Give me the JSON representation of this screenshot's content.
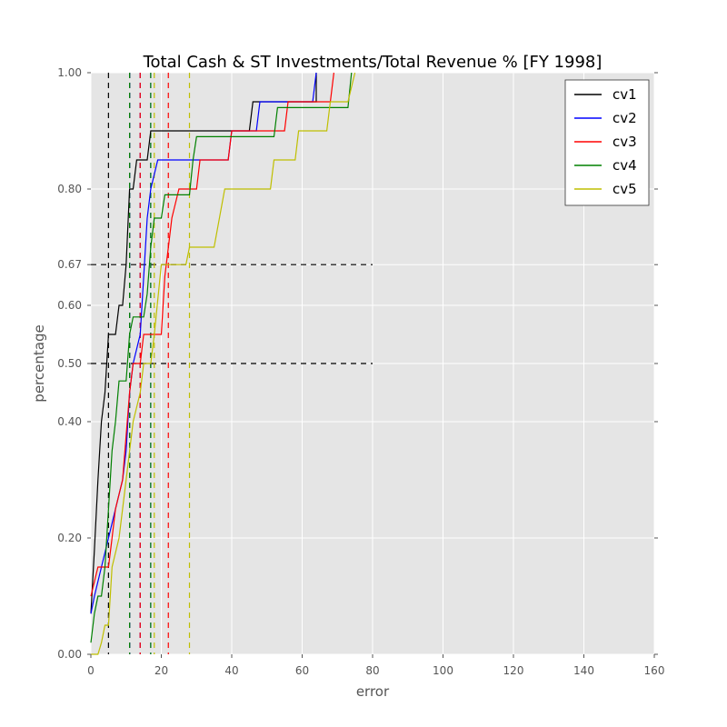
{
  "chart_data": {
    "type": "line",
    "title": "Total Cash & ST Investments/Total Revenue % [FY 1998]",
    "xlabel": "error",
    "ylabel": "percentage",
    "xlim": [
      0,
      160
    ],
    "ylim": [
      0,
      1
    ],
    "xticks": [
      0,
      20,
      40,
      60,
      80,
      100,
      120,
      140,
      160
    ],
    "yticks": [
      0.0,
      0.2,
      0.4,
      0.5,
      0.6,
      0.67,
      0.8,
      1.0
    ],
    "ytick_labels": [
      "0.00",
      "0.20",
      "0.40",
      "0.50",
      "0.60",
      "0.67",
      "0.80",
      "1.00"
    ],
    "grid": true,
    "background": "#e5e5e5",
    "legend_position": "top-right",
    "reference_lines": [
      {
        "axis": "y",
        "value": 0.5,
        "x_end": 80,
        "color": "#000000"
      },
      {
        "axis": "y",
        "value": 0.67,
        "x_end": 80,
        "color": "#000000"
      }
    ],
    "series": [
      {
        "name": "cv1",
        "color": "#000000",
        "vlines": [
          5,
          11
        ],
        "points": [
          [
            0,
            0.07
          ],
          [
            1,
            0.18
          ],
          [
            2,
            0.3
          ],
          [
            3,
            0.4
          ],
          [
            4,
            0.45
          ],
          [
            5,
            0.55
          ],
          [
            7,
            0.55
          ],
          [
            8,
            0.6
          ],
          [
            9,
            0.6
          ],
          [
            10,
            0.67
          ],
          [
            11,
            0.8
          ],
          [
            12,
            0.8
          ],
          [
            13,
            0.85
          ],
          [
            16,
            0.85
          ],
          [
            17,
            0.9
          ],
          [
            45,
            0.9
          ],
          [
            46,
            0.95
          ],
          [
            64,
            0.95
          ],
          [
            64,
            1.0
          ]
        ]
      },
      {
        "name": "cv2",
        "color": "#0000ff",
        "vlines": [
          11,
          14,
          17
        ],
        "points": [
          [
            0,
            0.07
          ],
          [
            1,
            0.1
          ],
          [
            3,
            0.15
          ],
          [
            5,
            0.2
          ],
          [
            7,
            0.25
          ],
          [
            9,
            0.3
          ],
          [
            10,
            0.35
          ],
          [
            11,
            0.45
          ],
          [
            12,
            0.5
          ],
          [
            14,
            0.55
          ],
          [
            16,
            0.75
          ],
          [
            17,
            0.8
          ],
          [
            19,
            0.85
          ],
          [
            39,
            0.85
          ],
          [
            40,
            0.9
          ],
          [
            47,
            0.9
          ],
          [
            48,
            0.95
          ],
          [
            63,
            0.95
          ],
          [
            64,
            1.0
          ]
        ]
      },
      {
        "name": "cv3",
        "color": "#ff0000",
        "vlines": [
          14,
          22
        ],
        "points": [
          [
            0,
            0.1
          ],
          [
            2,
            0.15
          ],
          [
            5,
            0.15
          ],
          [
            6,
            0.2
          ],
          [
            7,
            0.25
          ],
          [
            9,
            0.3
          ],
          [
            11,
            0.45
          ],
          [
            12,
            0.5
          ],
          [
            14,
            0.5
          ],
          [
            15,
            0.55
          ],
          [
            20,
            0.55
          ],
          [
            21,
            0.65
          ],
          [
            22,
            0.7
          ],
          [
            23,
            0.75
          ],
          [
            25,
            0.8
          ],
          [
            30,
            0.8
          ],
          [
            31,
            0.85
          ],
          [
            39,
            0.85
          ],
          [
            40,
            0.9
          ],
          [
            55,
            0.9
          ],
          [
            56,
            0.95
          ],
          [
            68,
            0.95
          ],
          [
            69,
            1.0
          ]
        ]
      },
      {
        "name": "cv4",
        "color": "#008000",
        "vlines": [
          11,
          17
        ],
        "points": [
          [
            0,
            0.02
          ],
          [
            1,
            0.07
          ],
          [
            2,
            0.1
          ],
          [
            3,
            0.1
          ],
          [
            4,
            0.15
          ],
          [
            5,
            0.25
          ],
          [
            6,
            0.35
          ],
          [
            7,
            0.4
          ],
          [
            8,
            0.47
          ],
          [
            10,
            0.47
          ],
          [
            11,
            0.55
          ],
          [
            12,
            0.58
          ],
          [
            15,
            0.58
          ],
          [
            16,
            0.62
          ],
          [
            17,
            0.7
          ],
          [
            18,
            0.75
          ],
          [
            20,
            0.75
          ],
          [
            21,
            0.79
          ],
          [
            28,
            0.79
          ],
          [
            29,
            0.85
          ],
          [
            30,
            0.89
          ],
          [
            52,
            0.89
          ],
          [
            53,
            0.94
          ],
          [
            73,
            0.94
          ],
          [
            74,
            1.0
          ]
        ]
      },
      {
        "name": "cv5",
        "color": "#bfbf00",
        "vlines": [
          18,
          28
        ],
        "points": [
          [
            0,
            0.0
          ],
          [
            2,
            0.0
          ],
          [
            3,
            0.02
          ],
          [
            4,
            0.05
          ],
          [
            5,
            0.05
          ],
          [
            6,
            0.15
          ],
          [
            8,
            0.2
          ],
          [
            10,
            0.3
          ],
          [
            12,
            0.4
          ],
          [
            14,
            0.45
          ],
          [
            15,
            0.5
          ],
          [
            17,
            0.5
          ],
          [
            18,
            0.55
          ],
          [
            20,
            0.67
          ],
          [
            27,
            0.67
          ],
          [
            28,
            0.7
          ],
          [
            35,
            0.7
          ],
          [
            38,
            0.8
          ],
          [
            51,
            0.8
          ],
          [
            52,
            0.85
          ],
          [
            58,
            0.85
          ],
          [
            59,
            0.9
          ],
          [
            67,
            0.9
          ],
          [
            68,
            0.95
          ],
          [
            73,
            0.95
          ],
          [
            75,
            1.0
          ]
        ]
      }
    ]
  }
}
